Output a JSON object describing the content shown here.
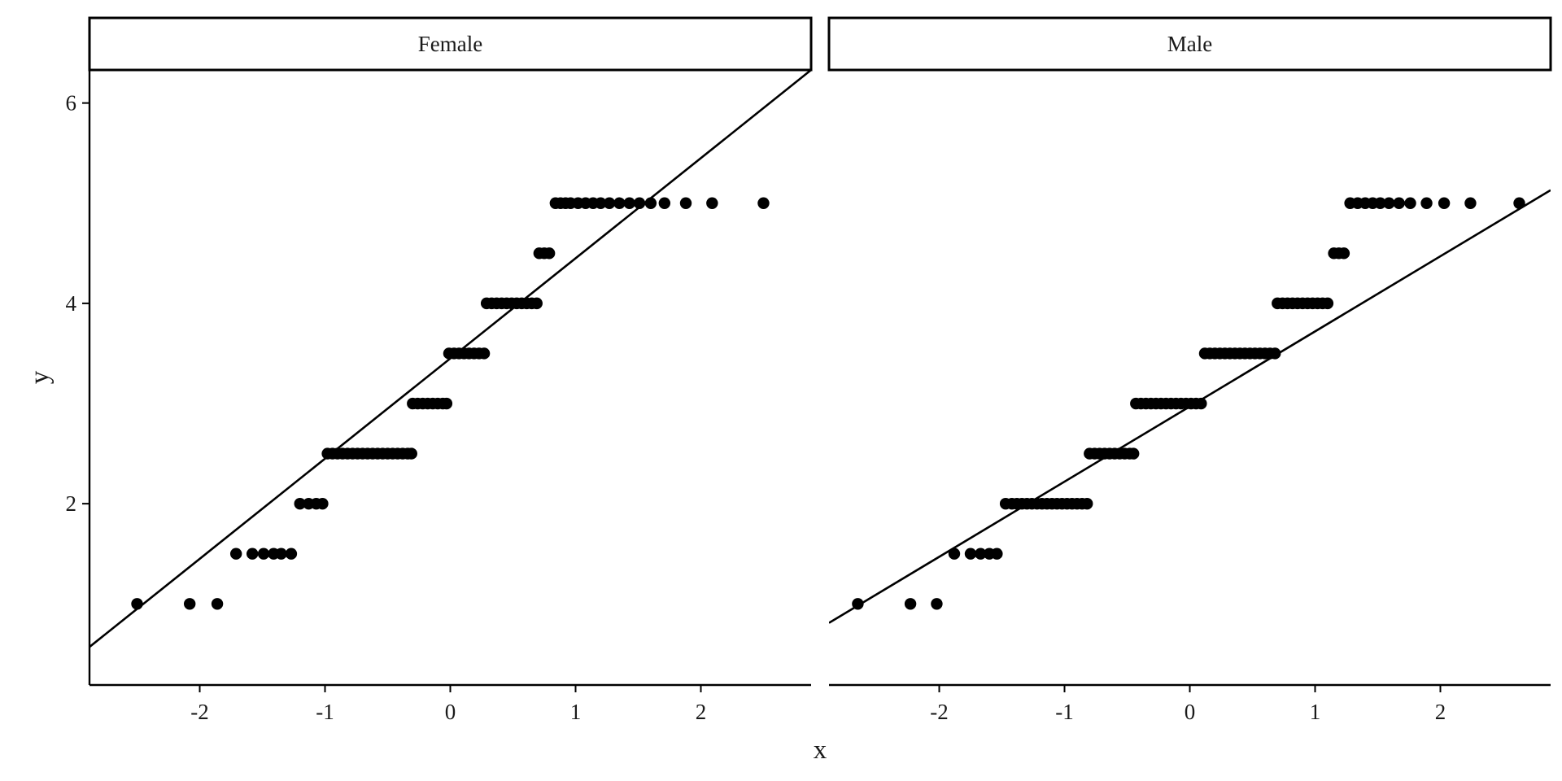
{
  "chart_data": {
    "type": "scatter",
    "xlabel": "x",
    "ylabel": "y",
    "xlim": [
      -2.88,
      2.88
    ],
    "ylim": [
      0.19,
      6.33
    ],
    "x_ticks": [
      -2,
      -1,
      0,
      1,
      2
    ],
    "x_tick_labels": [
      "-2",
      "-1",
      "0",
      "1",
      "2"
    ],
    "y_ticks": [
      2,
      4,
      6
    ],
    "y_tick_labels": [
      "2",
      "4",
      "6"
    ],
    "grid": false,
    "legend": "none",
    "colors": {
      "points": "#000000",
      "line": "#000000",
      "strip_fill": "#ffffff",
      "strip_border": "#000000"
    },
    "panels": [
      {
        "label": "Female",
        "reference_line": {
          "intercept": 3.45,
          "slope": 1.0
        },
        "series": [
          {
            "y": 1.0,
            "x": [
              -2.5,
              -2.08,
              -1.86
            ]
          },
          {
            "y": 1.5,
            "x": [
              -1.71,
              -1.58,
              -1.49,
              -1.41,
              -1.35,
              -1.27
            ]
          },
          {
            "y": 2.0,
            "x": [
              -1.2,
              -1.13,
              -1.07,
              -1.02
            ]
          },
          {
            "y": 2.5,
            "x": [
              -0.98,
              -0.94,
              -0.9,
              -0.86,
              -0.82,
              -0.78,
              -0.74,
              -0.7,
              -0.66,
              -0.62,
              -0.58,
              -0.54,
              -0.5,
              -0.46,
              -0.42,
              -0.38,
              -0.34,
              -0.31
            ]
          },
          {
            "y": 3.0,
            "x": [
              -0.3,
              -0.26,
              -0.22,
              -0.18,
              -0.14,
              -0.1,
              -0.06,
              -0.03
            ]
          },
          {
            "y": 3.5,
            "x": [
              -0.01,
              0.03,
              0.07,
              0.11,
              0.15,
              0.19,
              0.23,
              0.27
            ]
          },
          {
            "y": 4.0,
            "x": [
              0.29,
              0.33,
              0.37,
              0.41,
              0.45,
              0.49,
              0.53,
              0.57,
              0.61,
              0.65,
              0.69
            ]
          },
          {
            "y": 4.5,
            "x": [
              0.71,
              0.75,
              0.79
            ]
          },
          {
            "y": 5.0,
            "x": [
              0.84,
              0.88,
              0.92,
              0.96,
              1.02,
              1.08,
              1.14,
              1.2,
              1.27,
              1.35,
              1.43,
              1.51,
              1.6,
              1.71,
              1.88,
              2.09,
              2.5
            ]
          }
        ]
      },
      {
        "label": "Male",
        "reference_line": {
          "intercept": 2.97,
          "slope": 0.75
        },
        "series": [
          {
            "y": 1.0,
            "x": [
              -2.65,
              -2.23,
              -2.02
            ]
          },
          {
            "y": 1.5,
            "x": [
              -1.88,
              -1.75,
              -1.67,
              -1.6,
              -1.54
            ]
          },
          {
            "y": 2.0,
            "x": [
              -1.47,
              -1.42,
              -1.38,
              -1.34,
              -1.3,
              -1.26,
              -1.22,
              -1.18,
              -1.14,
              -1.1,
              -1.06,
              -1.02,
              -0.98,
              -0.94,
              -0.9,
              -0.86,
              -0.82
            ]
          },
          {
            "y": 2.5,
            "x": [
              -0.8,
              -0.76,
              -0.72,
              -0.68,
              -0.64,
              -0.6,
              -0.56,
              -0.52,
              -0.48,
              -0.45
            ]
          },
          {
            "y": 3.0,
            "x": [
              -0.43,
              -0.39,
              -0.35,
              -0.31,
              -0.27,
              -0.23,
              -0.19,
              -0.15,
              -0.11,
              -0.07,
              -0.03,
              0.01,
              0.05,
              0.09
            ]
          },
          {
            "y": 3.5,
            "x": [
              0.12,
              0.16,
              0.2,
              0.24,
              0.28,
              0.32,
              0.36,
              0.4,
              0.44,
              0.48,
              0.52,
              0.56,
              0.6,
              0.64,
              0.68
            ]
          },
          {
            "y": 4.0,
            "x": [
              0.7,
              0.74,
              0.78,
              0.82,
              0.86,
              0.9,
              0.94,
              0.98,
              1.02,
              1.06,
              1.1
            ]
          },
          {
            "y": 4.5,
            "x": [
              1.15,
              1.19,
              1.23
            ]
          },
          {
            "y": 5.0,
            "x": [
              1.28,
              1.34,
              1.4,
              1.46,
              1.52,
              1.59,
              1.67,
              1.76,
              1.89,
              2.03,
              2.24,
              2.63
            ]
          }
        ]
      }
    ]
  }
}
